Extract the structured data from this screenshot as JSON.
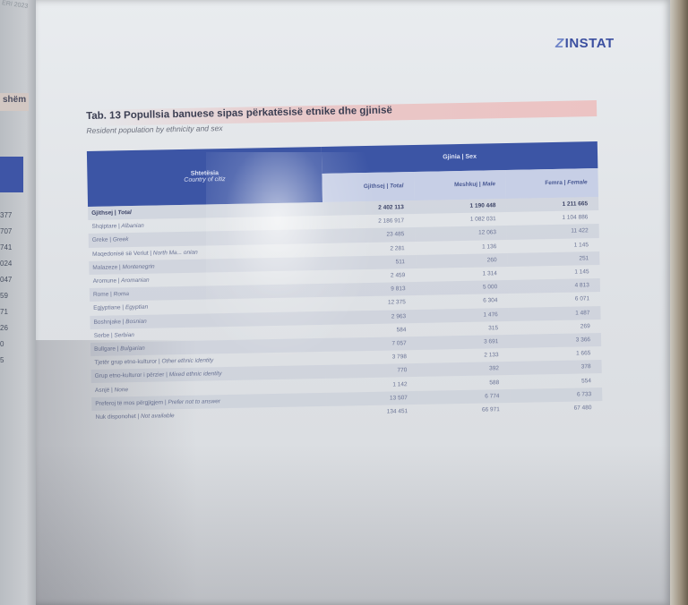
{
  "left_page": {
    "header": "ERI 2023",
    "tab": "shëm",
    "numbers": [
      "377",
      "707",
      "741",
      "024",
      "047",
      "59",
      "71",
      "26",
      "0",
      "5"
    ]
  },
  "logo": {
    "mark": "Z",
    "text": "INSTAT"
  },
  "table": {
    "title": "Tab. 13 Popullsia banuese sipas përkatësisë etnike dhe gjinisë",
    "subtitle": "Resident population by ethnicity and sex",
    "header": {
      "country_main": "Shtetësia",
      "country_sub": "Country of citiz",
      "sex_group": "Gjinia | Sex",
      "columns": [
        {
          "al": "Gjithsej |",
          "en": " Total"
        },
        {
          "al": "Meshkuj |",
          "en": " Male"
        },
        {
          "al": "Femra |",
          "en": " Female"
        }
      ]
    },
    "rows": [
      {
        "al": "Gjithsej |",
        "en": " Total",
        "total": "2 402 113",
        "male": "1 190 448",
        "female": "1 211 665",
        "bold": true
      },
      {
        "al": "Shqiptare |",
        "en": " Albanian",
        "total": "2 186 917",
        "male": "1 082 031",
        "female": "1 104 886"
      },
      {
        "al": "Greke |",
        "en": " Greek",
        "total": "23 485",
        "male": "12 063",
        "female": "11 422"
      },
      {
        "al": "Maqedonisë së Veriut |",
        "en": " North Ma... onian",
        "total": "2 281",
        "male": "1 136",
        "female": "1 145"
      },
      {
        "al": "Malazeze |",
        "en": " Montenegrin",
        "total": "511",
        "male": "260",
        "female": "251"
      },
      {
        "al": "Aromune |",
        "en": " Aromanian",
        "total": "2 459",
        "male": "1 314",
        "female": "1 145"
      },
      {
        "al": "Rome |",
        "en": " Roma",
        "total": "9 813",
        "male": "5 000",
        "female": "4 813"
      },
      {
        "al": "Egjyptiane |",
        "en": " Egyptian",
        "total": "12 375",
        "male": "6 304",
        "female": "6 071"
      },
      {
        "al": "Boshnjake |",
        "en": " Bosnian",
        "total": "2 963",
        "male": "1 476",
        "female": "1 487"
      },
      {
        "al": "Serbe |",
        "en": " Serbian",
        "total": "584",
        "male": "315",
        "female": "269"
      },
      {
        "al": "Bullgare |",
        "en": " Bulgarian",
        "total": "7 057",
        "male": "3 691",
        "female": "3 366"
      },
      {
        "al": "Tjetër grup etno-kulturor |",
        "en": " Other ethnic identity",
        "total": "3 798",
        "male": "2 133",
        "female": "1 665"
      },
      {
        "al": "Grup etno-kulturor i përzier |",
        "en": " Mixed ethnic identity",
        "total": "770",
        "male": "392",
        "female": "378"
      },
      {
        "al": "Asnjë |",
        "en": " None",
        "total": "1 142",
        "male": "588",
        "female": "554"
      },
      {
        "al": "Preferoj të mos përgjigjem |",
        "en": " Prefer not to answer",
        "total": "13 507",
        "male": "6 774",
        "female": "6 733"
      },
      {
        "al": "Nuk disponohet |",
        "en": " Not available",
        "total": "134 451",
        "male": "66 971",
        "female": "67 480"
      }
    ]
  }
}
